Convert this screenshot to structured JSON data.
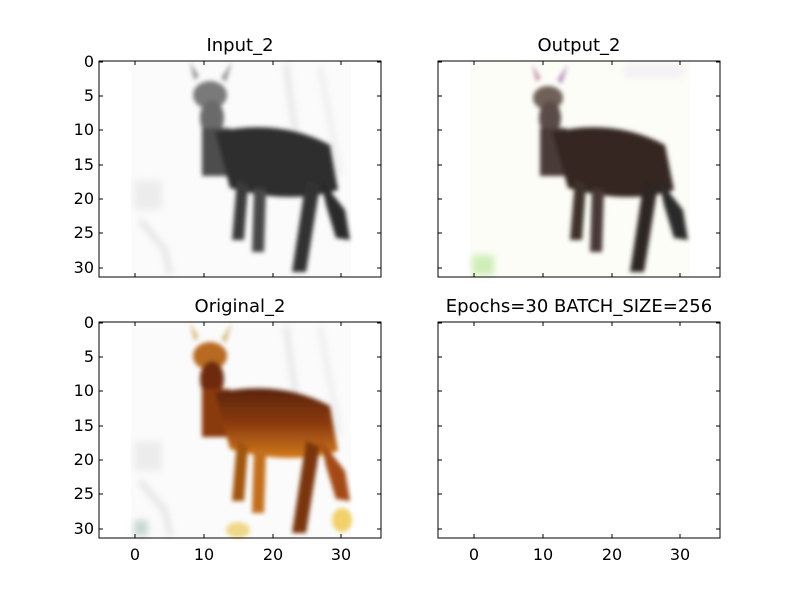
{
  "figure": {
    "panels": [
      {
        "title": "Input_2",
        "kind": "grayscale deer image",
        "xticks": [],
        "yticks": [
          "0",
          "5",
          "10",
          "15",
          "20",
          "25",
          "30"
        ]
      },
      {
        "title": "Output_2",
        "kind": "reconstructed color deer image",
        "xticks": [],
        "yticks": []
      },
      {
        "title": "Original_2",
        "kind": "color deer image",
        "xticks": [
          "0",
          "10",
          "20",
          "30"
        ],
        "yticks": [
          "0",
          "5",
          "10",
          "15",
          "20",
          "25",
          "30"
        ]
      },
      {
        "title": "Epochs=30 BATCH_SIZE=256",
        "kind": "empty plot",
        "xticks": [
          "0",
          "10",
          "20",
          "30"
        ],
        "yticks": []
      }
    ],
    "colors": {
      "gray_deer": "#3a3a3a",
      "output_deer": "#3b2c2a",
      "original_deer": "#8a3a0f",
      "original_light": "#d27a1c",
      "background": "#f7f7f7"
    }
  }
}
